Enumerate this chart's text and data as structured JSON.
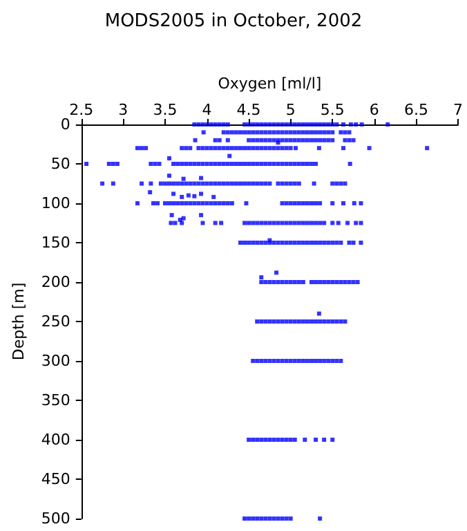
{
  "chart_data": {
    "type": "scatter",
    "title": "MODS2005 in October, 2002",
    "xlabel": "Oxygen [ml/l]",
    "ylabel": "Depth [m]",
    "xlim": [
      2.5,
      7
    ],
    "xticks": [
      2.5,
      3,
      3.5,
      4,
      4.5,
      5,
      5.5,
      6,
      6.5,
      7
    ],
    "ylim": [
      500,
      0
    ],
    "yticks": [
      0,
      50,
      100,
      150,
      200,
      250,
      300,
      350,
      400,
      450,
      500
    ],
    "grid": false,
    "marker": "square",
    "series": [
      {
        "color": "#0000ff",
        "x": [
          3.85,
          3.9,
          3.95,
          4.0,
          4.05,
          4.1,
          4.15,
          4.2,
          4.25,
          4.45,
          4.5,
          4.55,
          4.6,
          4.65,
          4.7,
          4.75,
          4.8,
          4.85,
          4.9,
          4.95,
          5.0,
          5.05,
          5.1,
          5.15,
          5.2,
          5.25,
          5.3,
          5.35,
          5.4,
          5.45,
          5.5,
          5.55,
          5.63,
          5.72,
          5.78,
          5.85,
          6.16,
          3.96,
          4.2,
          4.25,
          4.3,
          4.35,
          4.4,
          4.45,
          4.5,
          4.55,
          4.6,
          4.65,
          4.7,
          4.75,
          4.8,
          4.85,
          4.9,
          4.95,
          5.0,
          5.05,
          5.1,
          5.15,
          5.2,
          5.25,
          5.3,
          5.35,
          5.4,
          5.45,
          5.5,
          5.6,
          5.65,
          5.7,
          3.86,
          4.1,
          4.15,
          4.25,
          4.5,
          4.55,
          4.6,
          4.65,
          4.7,
          4.75,
          4.8,
          4.85,
          4.9,
          4.95,
          5.0,
          5.05,
          5.1,
          5.15,
          5.2,
          5.25,
          5.3,
          5.35,
          5.4,
          5.45,
          5.5,
          5.65,
          5.7,
          5.75,
          4.85,
          3.17,
          3.22,
          3.27,
          3.7,
          3.75,
          3.8,
          3.9,
          3.95,
          4.0,
          4.05,
          4.1,
          4.15,
          4.2,
          4.25,
          4.3,
          4.35,
          4.4,
          4.45,
          4.5,
          4.55,
          4.6,
          4.65,
          4.7,
          4.75,
          4.8,
          4.85,
          4.9,
          4.95,
          5.0,
          5.06,
          5.34,
          5.63,
          5.94,
          6.63,
          4.27,
          3.55,
          2.56,
          2.83,
          2.88,
          2.93,
          3.33,
          3.38,
          3.43,
          3.6,
          3.65,
          3.7,
          3.75,
          3.8,
          3.85,
          3.9,
          3.95,
          4.0,
          4.05,
          4.1,
          4.15,
          4.2,
          4.25,
          4.3,
          4.35,
          4.4,
          4.45,
          4.5,
          4.55,
          4.6,
          4.65,
          4.7,
          4.75,
          4.8,
          4.85,
          4.9,
          4.95,
          5.0,
          5.05,
          5.1,
          5.15,
          5.2,
          5.25,
          5.3,
          5.71,
          3.55,
          3.72,
          3.93,
          2.75,
          2.88,
          3.22,
          3.33,
          3.45,
          3.5,
          3.55,
          3.6,
          3.65,
          3.7,
          3.75,
          3.8,
          3.85,
          3.9,
          3.95,
          4.0,
          4.05,
          4.1,
          4.15,
          4.2,
          4.25,
          4.3,
          4.35,
          4.4,
          4.45,
          4.5,
          4.55,
          4.6,
          4.65,
          4.7,
          4.75,
          4.85,
          4.9,
          4.95,
          5.0,
          5.05,
          5.1,
          5.28,
          5.5,
          5.55,
          5.6,
          5.65,
          3.32,
          3.6,
          3.7,
          3.78,
          3.85,
          3.93,
          4.08,
          3.17,
          3.36,
          3.41,
          3.5,
          3.55,
          3.6,
          3.65,
          3.7,
          3.75,
          3.8,
          3.85,
          3.9,
          3.95,
          4.0,
          4.05,
          4.1,
          4.15,
          4.2,
          4.25,
          4.3,
          4.47,
          4.9,
          4.95,
          5.0,
          5.05,
          5.1,
          5.15,
          5.2,
          5.25,
          5.3,
          5.35,
          5.5,
          5.63,
          5.76,
          5.84,
          3.58,
          3.68,
          3.72,
          3.93,
          3.57,
          3.62,
          3.7,
          3.95,
          4.1,
          4.17,
          4.45,
          4.5,
          4.55,
          4.6,
          4.65,
          4.7,
          4.75,
          4.8,
          4.85,
          4.9,
          4.95,
          5.0,
          5.05,
          5.1,
          5.15,
          5.2,
          5.25,
          5.3,
          5.35,
          5.4,
          5.5,
          5.57,
          5.68,
          5.78,
          5.84,
          4.4,
          4.45,
          4.5,
          4.55,
          4.6,
          4.65,
          4.7,
          4.75,
          4.8,
          4.85,
          4.9,
          4.95,
          5.0,
          5.05,
          5.1,
          5.15,
          5.2,
          5.25,
          5.3,
          5.35,
          5.4,
          5.45,
          5.5,
          5.55,
          5.6,
          5.7,
          5.75,
          5.84,
          4.75,
          4.83,
          4.65,
          4.65,
          4.7,
          4.75,
          4.8,
          4.85,
          4.9,
          4.95,
          5.0,
          5.05,
          5.1,
          5.15,
          5.25,
          5.3,
          5.35,
          5.4,
          5.45,
          5.5,
          5.55,
          5.6,
          5.65,
          5.7,
          5.75,
          5.8,
          5.34,
          4.6,
          4.65,
          4.7,
          4.75,
          4.8,
          4.85,
          4.9,
          4.95,
          5.0,
          5.05,
          5.1,
          5.15,
          5.2,
          5.25,
          5.3,
          5.35,
          5.4,
          5.45,
          5.5,
          5.55,
          5.6,
          5.65,
          4.55,
          4.6,
          4.65,
          4.7,
          4.75,
          4.8,
          4.85,
          4.9,
          4.95,
          5.0,
          5.05,
          5.1,
          5.15,
          5.2,
          5.25,
          5.3,
          5.35,
          5.4,
          5.45,
          5.5,
          5.55,
          5.6,
          4.5,
          4.55,
          4.6,
          4.65,
          4.7,
          4.75,
          4.8,
          4.85,
          4.9,
          4.95,
          5.0,
          5.05,
          5.17,
          5.3,
          5.4,
          5.5,
          4.45,
          4.5,
          4.55,
          4.6,
          4.65,
          4.7,
          4.75,
          4.8,
          4.85,
          4.9,
          4.95,
          5.0,
          5.35
        ],
        "values": [
          0,
          0,
          0,
          0,
          0,
          0,
          0,
          0,
          0,
          0,
          0,
          0,
          0,
          0,
          0,
          0,
          0,
          0,
          0,
          0,
          0,
          0,
          0,
          0,
          0,
          0,
          0,
          0,
          0,
          0,
          0,
          0,
          0,
          0,
          0,
          0,
          0,
          10,
          10,
          10,
          10,
          10,
          10,
          10,
          10,
          10,
          10,
          10,
          10,
          10,
          10,
          10,
          10,
          10,
          10,
          10,
          10,
          10,
          10,
          10,
          10,
          10,
          10,
          10,
          10,
          10,
          10,
          10,
          20,
          20,
          20,
          20,
          20,
          20,
          20,
          20,
          20,
          20,
          20,
          20,
          20,
          20,
          20,
          20,
          20,
          20,
          20,
          20,
          20,
          20,
          20,
          20,
          20,
          20,
          20,
          20,
          23,
          30,
          30,
          30,
          30,
          30,
          30,
          30,
          30,
          30,
          30,
          30,
          30,
          30,
          30,
          30,
          30,
          30,
          30,
          30,
          30,
          30,
          30,
          30,
          30,
          30,
          30,
          30,
          30,
          30,
          30,
          30,
          30,
          30,
          30,
          40,
          43,
          50,
          50,
          50,
          50,
          50,
          50,
          50,
          50,
          50,
          50,
          50,
          50,
          50,
          50,
          50,
          50,
          50,
          50,
          50,
          50,
          50,
          50,
          50,
          50,
          50,
          50,
          50,
          50,
          50,
          50,
          50,
          50,
          50,
          50,
          50,
          50,
          50,
          50,
          50,
          50,
          50,
          50,
          50,
          65,
          69,
          68,
          75,
          75,
          75,
          75,
          75,
          75,
          75,
          75,
          75,
          75,
          75,
          75,
          75,
          75,
          75,
          75,
          75,
          75,
          75,
          75,
          75,
          75,
          75,
          75,
          75,
          75,
          75,
          75,
          75,
          75,
          75,
          75,
          75,
          75,
          75,
          75,
          75,
          75,
          75,
          75,
          75,
          75,
          86,
          88,
          92,
          90,
          91,
          88,
          92,
          100,
          100,
          100,
          100,
          100,
          100,
          100,
          100,
          100,
          100,
          100,
          100,
          100,
          100,
          100,
          100,
          100,
          100,
          100,
          100,
          100,
          100,
          100,
          100,
          100,
          100,
          100,
          100,
          100,
          100,
          100,
          100,
          100,
          100,
          100,
          115,
          121,
          119,
          115,
          125,
          125,
          125,
          125,
          125,
          125,
          125,
          125,
          125,
          125,
          125,
          125,
          125,
          125,
          125,
          125,
          125,
          125,
          125,
          125,
          125,
          125,
          125,
          125,
          125,
          125,
          125,
          125,
          125,
          125,
          125,
          150,
          150,
          150,
          150,
          150,
          150,
          150,
          150,
          150,
          150,
          150,
          150,
          150,
          150,
          150,
          150,
          150,
          150,
          150,
          150,
          150,
          150,
          150,
          150,
          150,
          150,
          150,
          150,
          147,
          188,
          194,
          200,
          200,
          200,
          200,
          200,
          200,
          200,
          200,
          200,
          200,
          200,
          200,
          200,
          200,
          200,
          200,
          200,
          200,
          200,
          200,
          200,
          200,
          200,
          240,
          250,
          250,
          250,
          250,
          250,
          250,
          250,
          250,
          250,
          250,
          250,
          250,
          250,
          250,
          250,
          250,
          250,
          250,
          250,
          250,
          250,
          250,
          300,
          300,
          300,
          300,
          300,
          300,
          300,
          300,
          300,
          300,
          300,
          300,
          300,
          300,
          300,
          300,
          300,
          300,
          300,
          300,
          300,
          300,
          400,
          400,
          400,
          400,
          400,
          400,
          400,
          400,
          400,
          400,
          400,
          400,
          400,
          400,
          400,
          400,
          500,
          500,
          500,
          500,
          500,
          500,
          500,
          500,
          500,
          500,
          500,
          500,
          500
        ]
      }
    ]
  }
}
